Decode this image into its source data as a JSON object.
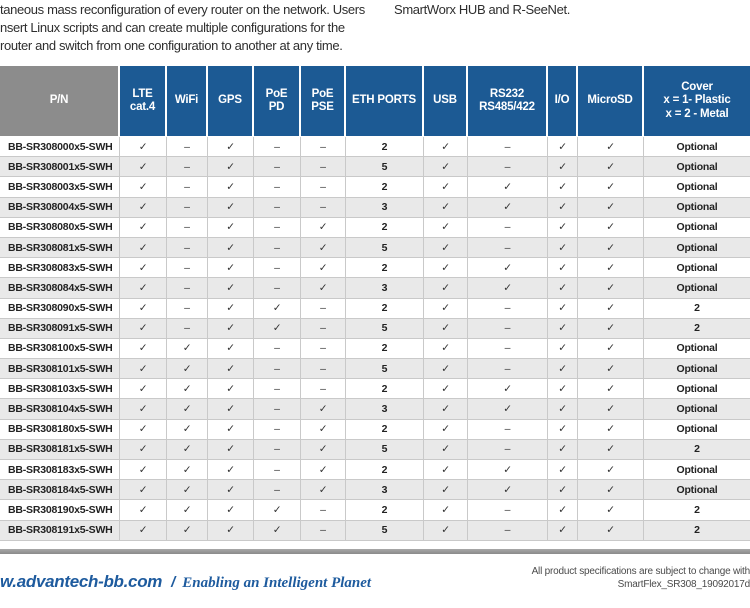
{
  "intro": {
    "left_lines": [
      "taneous mass reconfiguration of every router on the network. Users",
      "nsert Linux scripts and can create multiple configurations for the",
      "router and switch from one configuration to another at any time."
    ],
    "right_line": "SmartWorx HUB and R-SeeNet."
  },
  "table": {
    "header_labels": [
      "P/N",
      "LTE\ncat.4",
      "WiFi",
      "GPS",
      "PoE\nPD",
      "PoE\nPSE",
      "ETH PORTS",
      "USB",
      "RS232\nRS485/422",
      "I/O",
      "MicroSD",
      "Cover\nx = 1- Plastic\nx = 2 - Metal"
    ],
    "check_symbol": "✓",
    "dash_symbol": "–",
    "rows": [
      [
        "BB-SR308000x5-SWH",
        "✓",
        "–",
        "✓",
        "–",
        "–",
        "2",
        "✓",
        "–",
        "✓",
        "✓",
        "Optional"
      ],
      [
        "BB-SR308001x5-SWH",
        "✓",
        "–",
        "✓",
        "–",
        "–",
        "5",
        "✓",
        "–",
        "✓",
        "✓",
        "Optional"
      ],
      [
        "BB-SR308003x5-SWH",
        "✓",
        "–",
        "✓",
        "–",
        "–",
        "2",
        "✓",
        "✓",
        "✓",
        "✓",
        "Optional"
      ],
      [
        "BB-SR308004x5-SWH",
        "✓",
        "–",
        "✓",
        "–",
        "–",
        "3",
        "✓",
        "✓",
        "✓",
        "✓",
        "Optional"
      ],
      [
        "BB-SR308080x5-SWH",
        "✓",
        "–",
        "✓",
        "–",
        "✓",
        "2",
        "✓",
        "–",
        "✓",
        "✓",
        "Optional"
      ],
      [
        "BB-SR308081x5-SWH",
        "✓",
        "–",
        "✓",
        "–",
        "✓",
        "5",
        "✓",
        "–",
        "✓",
        "✓",
        "Optional"
      ],
      [
        "BB-SR308083x5-SWH",
        "✓",
        "–",
        "✓",
        "–",
        "✓",
        "2",
        "✓",
        "✓",
        "✓",
        "✓",
        "Optional"
      ],
      [
        "BB-SR308084x5-SWH",
        "✓",
        "–",
        "✓",
        "–",
        "✓",
        "3",
        "✓",
        "✓",
        "✓",
        "✓",
        "Optional"
      ],
      [
        "BB-SR308090x5-SWH",
        "✓",
        "–",
        "✓",
        "✓",
        "–",
        "2",
        "✓",
        "–",
        "✓",
        "✓",
        "2"
      ],
      [
        "BB-SR308091x5-SWH",
        "✓",
        "–",
        "✓",
        "✓",
        "–",
        "5",
        "✓",
        "–",
        "✓",
        "✓",
        "2"
      ],
      [
        "BB-SR308100x5-SWH",
        "✓",
        "✓",
        "✓",
        "–",
        "–",
        "2",
        "✓",
        "–",
        "✓",
        "✓",
        "Optional"
      ],
      [
        "BB-SR308101x5-SWH",
        "✓",
        "✓",
        "✓",
        "–",
        "–",
        "5",
        "✓",
        "–",
        "✓",
        "✓",
        "Optional"
      ],
      [
        "BB-SR308103x5-SWH",
        "✓",
        "✓",
        "✓",
        "–",
        "–",
        "2",
        "✓",
        "✓",
        "✓",
        "✓",
        "Optional"
      ],
      [
        "BB-SR308104x5-SWH",
        "✓",
        "✓",
        "✓",
        "–",
        "✓",
        "3",
        "✓",
        "✓",
        "✓",
        "✓",
        "Optional"
      ],
      [
        "BB-SR308180x5-SWH",
        "✓",
        "✓",
        "✓",
        "–",
        "✓",
        "2",
        "✓",
        "–",
        "✓",
        "✓",
        "Optional"
      ],
      [
        "BB-SR308181x5-SWH",
        "✓",
        "✓",
        "✓",
        "–",
        "✓",
        "5",
        "✓",
        "–",
        "✓",
        "✓",
        "2"
      ],
      [
        "BB-SR308183x5-SWH",
        "✓",
        "✓",
        "✓",
        "–",
        "✓",
        "2",
        "✓",
        "✓",
        "✓",
        "✓",
        "Optional"
      ],
      [
        "BB-SR308184x5-SWH",
        "✓",
        "✓",
        "✓",
        "–",
        "✓",
        "3",
        "✓",
        "✓",
        "✓",
        "✓",
        "Optional"
      ],
      [
        "BB-SR308190x5-SWH",
        "✓",
        "✓",
        "✓",
        "✓",
        "–",
        "2",
        "✓",
        "–",
        "✓",
        "✓",
        "2"
      ],
      [
        "BB-SR308191x5-SWH",
        "✓",
        "✓",
        "✓",
        "✓",
        "–",
        "5",
        "✓",
        "–",
        "✓",
        "✓",
        "2"
      ]
    ]
  },
  "footer": {
    "brand": "w.advantech-bb.com",
    "separator": "/",
    "tagline": "Enabling an Intelligent Planet",
    "disclaimer": "All product specifications are subject to change with",
    "doc_id": "SmartFlex_SR308_19092017d"
  },
  "colors": {
    "header_blue": "#1c5a94",
    "header_gray": "#8c8c8c",
    "row_stripe": "#e9e9e9",
    "footer_blue": "#1e5b9e"
  }
}
